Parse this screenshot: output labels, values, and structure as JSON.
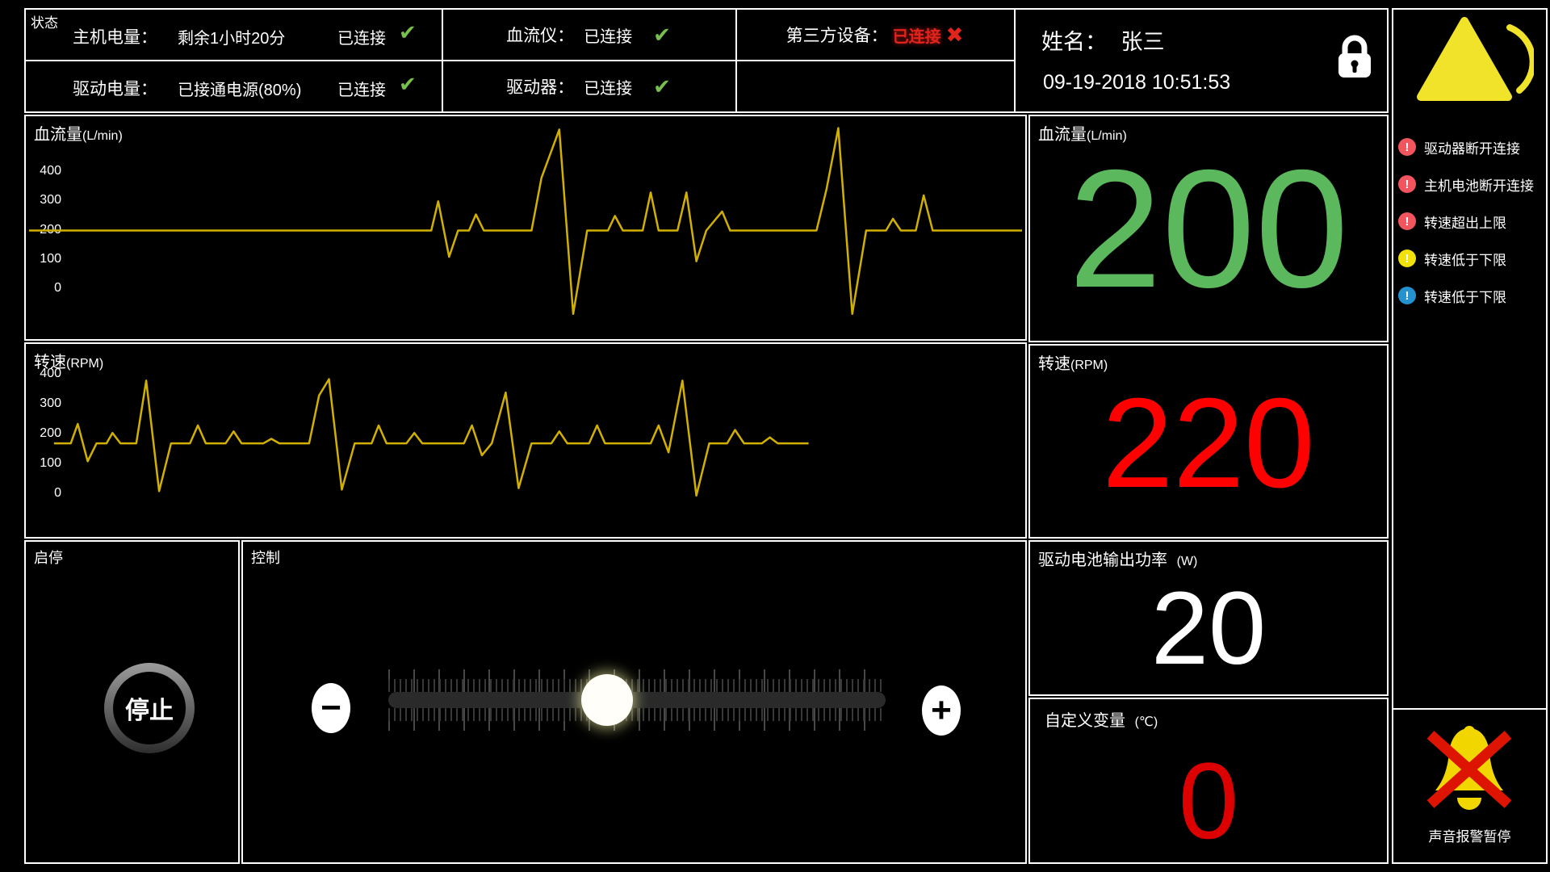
{
  "icons": {
    "check": "✔",
    "cross": "✖"
  },
  "status_bar": {
    "section_label": "状态",
    "col1": {
      "row1": {
        "label": "主机电量：",
        "detail": "剩余1小时20分",
        "status": "已连接",
        "icon": "check"
      },
      "row2": {
        "label": "驱动电量：",
        "detail": "已接通电源(80%)",
        "status": "已连接",
        "icon": "check"
      }
    },
    "col2": {
      "row1": {
        "label": "血流仪：",
        "status": "已连接",
        "icon": "check"
      },
      "row2": {
        "label": "驱动器：",
        "status": "已连接",
        "icon": "check"
      }
    },
    "col3": {
      "row1": {
        "label": "第三方设备：",
        "status": "已连接",
        "icon": "cross"
      }
    }
  },
  "patient": {
    "name_label": "姓名：",
    "name": "张三",
    "datetime": "09-19-2018 10:51:53"
  },
  "readouts": {
    "flow": {
      "title": "血流量",
      "unit": "(L/min)",
      "value": "200",
      "color": "#5cb85c"
    },
    "rpm": {
      "title": "转速",
      "unit": "(RPM)",
      "value": "220",
      "color": "#ff0000"
    },
    "power": {
      "title": "驱动电池输出功率",
      "unit": "(W)",
      "value": "20",
      "color": "#ffffff"
    },
    "custom": {
      "title": "自定义变量",
      "unit": "(℃)",
      "value": "0",
      "color": "#dd0000"
    }
  },
  "controls": {
    "startstop": {
      "panel_label": "启停",
      "button_label": "停止"
    },
    "control": {
      "panel_label": "控制",
      "minus_label": "−",
      "plus_label": "+",
      "slider_percent": 44
    }
  },
  "alarm_panel": {
    "alerts": [
      {
        "color": "#f2555d",
        "bang": "!",
        "text": "驱动器断开连接"
      },
      {
        "color": "#f2555d",
        "bang": "!",
        "text": "主机电池断开连接"
      },
      {
        "color": "#f2555d",
        "bang": "!",
        "text": "转速超出上限"
      },
      {
        "color": "#f0e10a",
        "bang": "!",
        "text": "转速低于下限"
      },
      {
        "color": "#2492cf",
        "bang": "!",
        "text": "转速低于下限"
      }
    ],
    "mute": {
      "label": "声音报警暂停"
    }
  },
  "chart_data": [
    {
      "type": "line",
      "title": "血流量",
      "unit": "(L/min)",
      "ylabel_ticks": [
        400,
        300,
        200,
        100,
        0
      ],
      "ylim": [
        -100,
        560
      ],
      "line_color": "#d1b000",
      "grid": false,
      "series": [
        {
          "name": "血流量",
          "points": [
            [
              0,
              200
            ],
            [
              40.5,
              200
            ],
            [
              41.2,
              300
            ],
            [
              42.3,
              110
            ],
            [
              43.2,
              200
            ],
            [
              44.3,
              200
            ],
            [
              45.0,
              255
            ],
            [
              45.8,
              200
            ],
            [
              50.6,
              200
            ],
            [
              51.6,
              380
            ],
            [
              53.4,
              545
            ],
            [
              54.8,
              -85
            ],
            [
              56.2,
              200
            ],
            [
              58.3,
              200
            ],
            [
              59.0,
              250
            ],
            [
              59.8,
              200
            ],
            [
              61.8,
              200
            ],
            [
              62.6,
              330
            ],
            [
              63.4,
              200
            ],
            [
              65.3,
              200
            ],
            [
              66.2,
              330
            ],
            [
              67.2,
              95
            ],
            [
              68.2,
              200
            ],
            [
              69.8,
              265
            ],
            [
              70.6,
              200
            ],
            [
              72.8,
              200
            ],
            [
              79.3,
              200
            ],
            [
              80.3,
              340
            ],
            [
              81.5,
              550
            ],
            [
              82.9,
              -85
            ],
            [
              84.3,
              200
            ],
            [
              86.3,
              200
            ],
            [
              87.0,
              240
            ],
            [
              87.8,
              200
            ],
            [
              89.3,
              200
            ],
            [
              90.1,
              320
            ],
            [
              91.0,
              200
            ],
            [
              92.8,
              200
            ],
            [
              100,
              200
            ]
          ]
        }
      ]
    },
    {
      "type": "line",
      "title": "转速",
      "unit": "(RPM)",
      "ylabel_ticks": [
        400,
        300,
        200,
        100,
        0
      ],
      "ylim": [
        -30,
        400
      ],
      "line_color": "#d1b000",
      "grid": false,
      "series": [
        {
          "name": "转速",
          "points": [
            [
              2.5,
              170
            ],
            [
              4.2,
              170
            ],
            [
              4.9,
              235
            ],
            [
              5.9,
              110
            ],
            [
              6.8,
              170
            ],
            [
              7.8,
              170
            ],
            [
              8.4,
              205
            ],
            [
              9.2,
              170
            ],
            [
              10.8,
              170
            ],
            [
              11.8,
              380
            ],
            [
              13.1,
              10
            ],
            [
              14.3,
              170
            ],
            [
              16.2,
              170
            ],
            [
              17.0,
              230
            ],
            [
              17.8,
              170
            ],
            [
              19.8,
              170
            ],
            [
              20.6,
              210
            ],
            [
              21.4,
              170
            ],
            [
              23.6,
              170
            ],
            [
              24.4,
              185
            ],
            [
              25.2,
              170
            ],
            [
              28.2,
              170
            ],
            [
              29.2,
              330
            ],
            [
              30.2,
              385
            ],
            [
              31.5,
              15
            ],
            [
              32.8,
              170
            ],
            [
              34.5,
              170
            ],
            [
              35.2,
              230
            ],
            [
              36.0,
              170
            ],
            [
              38.0,
              170
            ],
            [
              38.8,
              205
            ],
            [
              39.6,
              170
            ],
            [
              41.8,
              170
            ],
            [
              43.8,
              170
            ],
            [
              44.6,
              230
            ],
            [
              45.6,
              130
            ],
            [
              46.6,
              170
            ],
            [
              48.0,
              340
            ],
            [
              49.3,
              20
            ],
            [
              50.6,
              170
            ],
            [
              52.6,
              170
            ],
            [
              53.4,
              210
            ],
            [
              54.2,
              170
            ],
            [
              56.4,
              170
            ],
            [
              57.2,
              230
            ],
            [
              58.0,
              170
            ],
            [
              60.4,
              170
            ],
            [
              62.6,
              170
            ],
            [
              63.4,
              230
            ],
            [
              64.4,
              140
            ],
            [
              65.8,
              380
            ],
            [
              67.2,
              -5
            ],
            [
              68.5,
              170
            ],
            [
              70.3,
              170
            ],
            [
              71.1,
              215
            ],
            [
              72.0,
              170
            ],
            [
              73.8,
              170
            ],
            [
              74.6,
              190
            ],
            [
              75.4,
              170
            ],
            [
              78.5,
              170
            ]
          ]
        }
      ]
    }
  ]
}
